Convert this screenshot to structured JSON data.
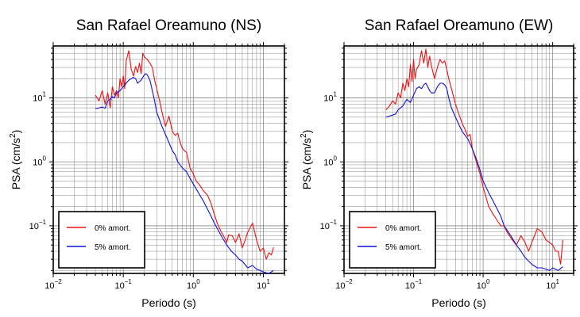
{
  "colors": {
    "series_0pct": "#ee1111",
    "series_5pct": "#1111dd",
    "grid": "#888888",
    "frame": "#000000"
  },
  "chart_data": [
    {
      "type": "line",
      "title": "San Rafael Oreamuno (NS)",
      "xlabel": "Periodo (s)",
      "ylabel": "PSA (cm/s",
      "ylabel_sup": "2",
      "ylabel_close": ")",
      "x_scale": "log",
      "y_scale": "log",
      "xlim": [
        0.01,
        20
      ],
      "ylim": [
        0.018,
        65
      ],
      "grid": true,
      "legend": "bottom-left",
      "x_ticks": [
        {
          "base": "10",
          "exp": "−2"
        },
        {
          "base": "10",
          "exp": "−1"
        },
        {
          "base": "10",
          "exp": "0"
        },
        {
          "base": "10",
          "exp": "1"
        }
      ],
      "y_ticks": [
        {
          "base": "10",
          "exp": "−1"
        },
        {
          "base": "10",
          "exp": "0"
        },
        {
          "base": "10",
          "exp": "1"
        }
      ],
      "series": [
        {
          "name": "0% amort.",
          "x": [
            0.04,
            0.045,
            0.05,
            0.055,
            0.06,
            0.065,
            0.07,
            0.075,
            0.08,
            0.085,
            0.09,
            0.095,
            0.1,
            0.105,
            0.11,
            0.12,
            0.13,
            0.14,
            0.15,
            0.16,
            0.17,
            0.18,
            0.19,
            0.2,
            0.22,
            0.24,
            0.26,
            0.28,
            0.3,
            0.33,
            0.36,
            0.4,
            0.45,
            0.5,
            0.55,
            0.6,
            0.65,
            0.7,
            0.8,
            0.9,
            1.0,
            1.1,
            1.2,
            1.4,
            1.6,
            1.8,
            2.0,
            2.2,
            2.5,
            2.8,
            3.0,
            3.2,
            3.6,
            4.0,
            4.5,
            5.0,
            5.5,
            6.0,
            7.0,
            8.0,
            9.0,
            10.0,
            11.0,
            12.0,
            13.0,
            14.0
          ],
          "y": [
            11,
            9,
            13,
            8,
            12,
            7,
            15,
            11,
            13,
            10,
            20,
            15,
            22,
            14,
            38,
            55,
            28,
            22,
            31,
            25,
            35,
            24,
            50,
            44,
            40,
            35,
            30,
            19,
            14,
            9,
            5.8,
            3.6,
            5.2,
            3.0,
            2.6,
            2.8,
            2.0,
            1.6,
            1.4,
            0.8,
            0.65,
            0.5,
            0.45,
            0.35,
            0.3,
            0.22,
            0.15,
            0.11,
            0.08,
            0.065,
            0.055,
            0.072,
            0.07,
            0.055,
            0.075,
            0.045,
            0.06,
            0.08,
            0.11,
            0.06,
            0.04,
            0.045,
            0.03,
            0.038,
            0.035,
            0.046
          ]
        },
        {
          "name": "5% amort.",
          "x": [
            0.04,
            0.045,
            0.05,
            0.055,
            0.06,
            0.065,
            0.07,
            0.075,
            0.08,
            0.09,
            0.1,
            0.11,
            0.12,
            0.13,
            0.14,
            0.15,
            0.16,
            0.17,
            0.18,
            0.19,
            0.2,
            0.21,
            0.22,
            0.24,
            0.26,
            0.28,
            0.3,
            0.33,
            0.36,
            0.4,
            0.45,
            0.5,
            0.55,
            0.6,
            0.7,
            0.8,
            0.9,
            1.0,
            1.2,
            1.4,
            1.6,
            1.8,
            2.0,
            2.5,
            3.0,
            3.5,
            4.0,
            4.5,
            5.0,
            6.0,
            7.0,
            8.0,
            9.0,
            10.0,
            12.0,
            14.0
          ],
          "y": [
            6.8,
            7.0,
            7.2,
            6.9,
            9.0,
            9.5,
            10.5,
            10.0,
            12.0,
            13.0,
            15.0,
            17.0,
            19.0,
            20.0,
            21.0,
            20.0,
            17.0,
            18.0,
            19.0,
            21.0,
            23.0,
            24.0,
            23.0,
            19.0,
            13.0,
            9.0,
            6.0,
            4.5,
            3.5,
            2.7,
            2.0,
            1.5,
            1.3,
            1.0,
            0.8,
            0.7,
            0.55,
            0.45,
            0.32,
            0.24,
            0.18,
            0.14,
            0.11,
            0.07,
            0.05,
            0.04,
            0.035,
            0.03,
            0.028,
            0.022,
            0.024,
            0.021,
            0.02,
            0.019,
            0.018,
            0.02
          ]
        }
      ]
    },
    {
      "type": "line",
      "title": "San Rafael Oreamuno (EW)",
      "xlabel": "Periodo (s)",
      "ylabel": "PSA (cm/s",
      "ylabel_sup": "2",
      "ylabel_close": ")",
      "x_scale": "log",
      "y_scale": "log",
      "xlim": [
        0.01,
        20
      ],
      "ylim": [
        0.018,
        65
      ],
      "grid": true,
      "legend": "bottom-left",
      "x_ticks": [
        {
          "base": "10",
          "exp": "−2"
        },
        {
          "base": "10",
          "exp": "−1"
        },
        {
          "base": "10",
          "exp": "0"
        },
        {
          "base": "10",
          "exp": "1"
        }
      ],
      "y_ticks": [
        {
          "base": "10",
          "exp": "−1"
        },
        {
          "base": "10",
          "exp": "0"
        },
        {
          "base": "10",
          "exp": "1"
        }
      ],
      "series": [
        {
          "name": "0% amort.",
          "x": [
            0.04,
            0.045,
            0.05,
            0.055,
            0.06,
            0.065,
            0.07,
            0.075,
            0.08,
            0.085,
            0.09,
            0.095,
            0.1,
            0.105,
            0.11,
            0.12,
            0.13,
            0.14,
            0.15,
            0.16,
            0.17,
            0.18,
            0.2,
            0.22,
            0.24,
            0.26,
            0.28,
            0.3,
            0.32,
            0.35,
            0.4,
            0.45,
            0.5,
            0.55,
            0.6,
            0.65,
            0.7,
            0.8,
            0.9,
            1.0,
            1.1,
            1.2,
            1.4,
            1.6,
            1.8,
            2.0,
            2.2,
            2.5,
            2.8,
            3.0,
            3.5,
            4.0,
            4.5,
            5.0,
            6.0,
            7.0,
            8.0,
            9.0,
            10.0,
            11.0,
            12.0,
            13.0,
            14.0
          ],
          "y": [
            6.5,
            7.5,
            9,
            8,
            12,
            10,
            17,
            13,
            20,
            15,
            33,
            18,
            40,
            20,
            28,
            33,
            55,
            35,
            58,
            30,
            45,
            32,
            20,
            30,
            40,
            35,
            38,
            28,
            20,
            14,
            8,
            5.5,
            4.0,
            3.2,
            2.5,
            2.7,
            1.6,
            1.0,
            0.65,
            0.4,
            0.28,
            0.2,
            0.15,
            0.12,
            0.1,
            0.1,
            0.08,
            0.065,
            0.055,
            0.05,
            0.07,
            0.055,
            0.04,
            0.055,
            0.09,
            0.08,
            0.06,
            0.055,
            0.05,
            0.04,
            0.04,
            0.025,
            0.06
          ]
        },
        {
          "name": "5% amort.",
          "x": [
            0.04,
            0.045,
            0.05,
            0.055,
            0.06,
            0.065,
            0.07,
            0.075,
            0.08,
            0.09,
            0.1,
            0.11,
            0.12,
            0.13,
            0.14,
            0.15,
            0.16,
            0.17,
            0.18,
            0.2,
            0.22,
            0.24,
            0.26,
            0.28,
            0.3,
            0.32,
            0.35,
            0.4,
            0.45,
            0.5,
            0.55,
            0.6,
            0.7,
            0.8,
            0.9,
            1.0,
            1.2,
            1.4,
            1.6,
            1.8,
            2.0,
            2.5,
            3.0,
            3.5,
            4.0,
            4.5,
            5.0,
            6.0,
            7.0,
            8.0,
            9.0,
            10.0,
            12.0,
            14.0
          ],
          "y": [
            5.0,
            5.2,
            5.4,
            5.6,
            6.5,
            7.0,
            7.5,
            8.5,
            9.5,
            8.5,
            11,
            14,
            15,
            14,
            16,
            17,
            15,
            13,
            12,
            12,
            15,
            17,
            17,
            16,
            14,
            10,
            7,
            5,
            3.8,
            3.0,
            2.6,
            2.3,
            1.6,
            1.1,
            0.75,
            0.5,
            0.33,
            0.24,
            0.18,
            0.14,
            0.1,
            0.07,
            0.05,
            0.04,
            0.032,
            0.028,
            0.025,
            0.022,
            0.022,
            0.021,
            0.02,
            0.022,
            0.02,
            0.023
          ]
        }
      ]
    }
  ]
}
